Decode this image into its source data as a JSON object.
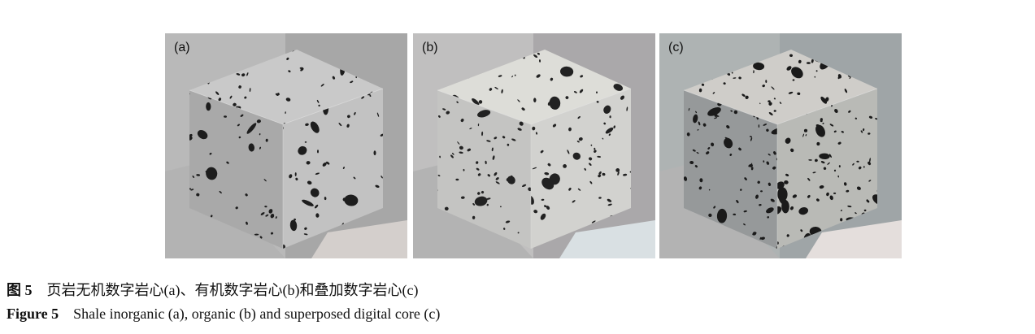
{
  "panels": [
    {
      "label": "(a)",
      "kind": "inorganic",
      "colors": {
        "top": "#c9c9c9",
        "left": "#a9a9a9",
        "right": "#c2c2c2",
        "bg_right": "#a7a7a7",
        "bg_left": "#b9b9b9",
        "floor": "#d4cfcc",
        "pore": "#1d1d1d"
      },
      "pore_density": 0.35
    },
    {
      "label": "(b)",
      "kind": "organic",
      "colors": {
        "top": "#ddddd8",
        "left": "#c4c4c2",
        "right": "#d2d2cf",
        "bg_right": "#aaa8aa",
        "bg_left": "#c0bfbf",
        "floor": "#d9e0e3",
        "pore": "#222222"
      },
      "pore_density": 0.6
    },
    {
      "label": "(c)",
      "kind": "superposed",
      "colors": {
        "top": "#cfcdc9",
        "left": "#96999a",
        "right": "#b9bab6",
        "bg_right": "#9fa5a7",
        "bg_left": "#aeb3b3",
        "floor": "#e4dedc",
        "pore": "#1a1a1a"
      },
      "pore_density": 0.8
    }
  ],
  "caption_cn": {
    "figure_no": "图 5",
    "text": "页岩无机数字岩心(a)、有机数字岩心(b)和叠加数字岩心(c)"
  },
  "caption_en": {
    "figure_no": "Figure 5",
    "text": "Shale inorganic (a), organic (b) and superposed digital core (c)"
  }
}
